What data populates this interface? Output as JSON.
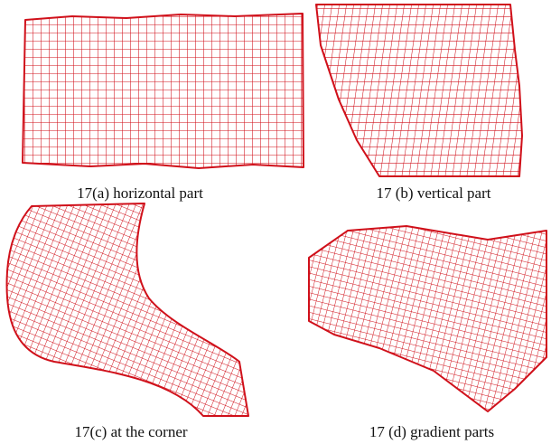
{
  "figures": [
    {
      "caption": "17(a) horizontal part"
    },
    {
      "caption": "17 (b) vertical part"
    },
    {
      "caption": "17(c) at the corner"
    },
    {
      "caption": "17 (d) gradient parts"
    }
  ]
}
